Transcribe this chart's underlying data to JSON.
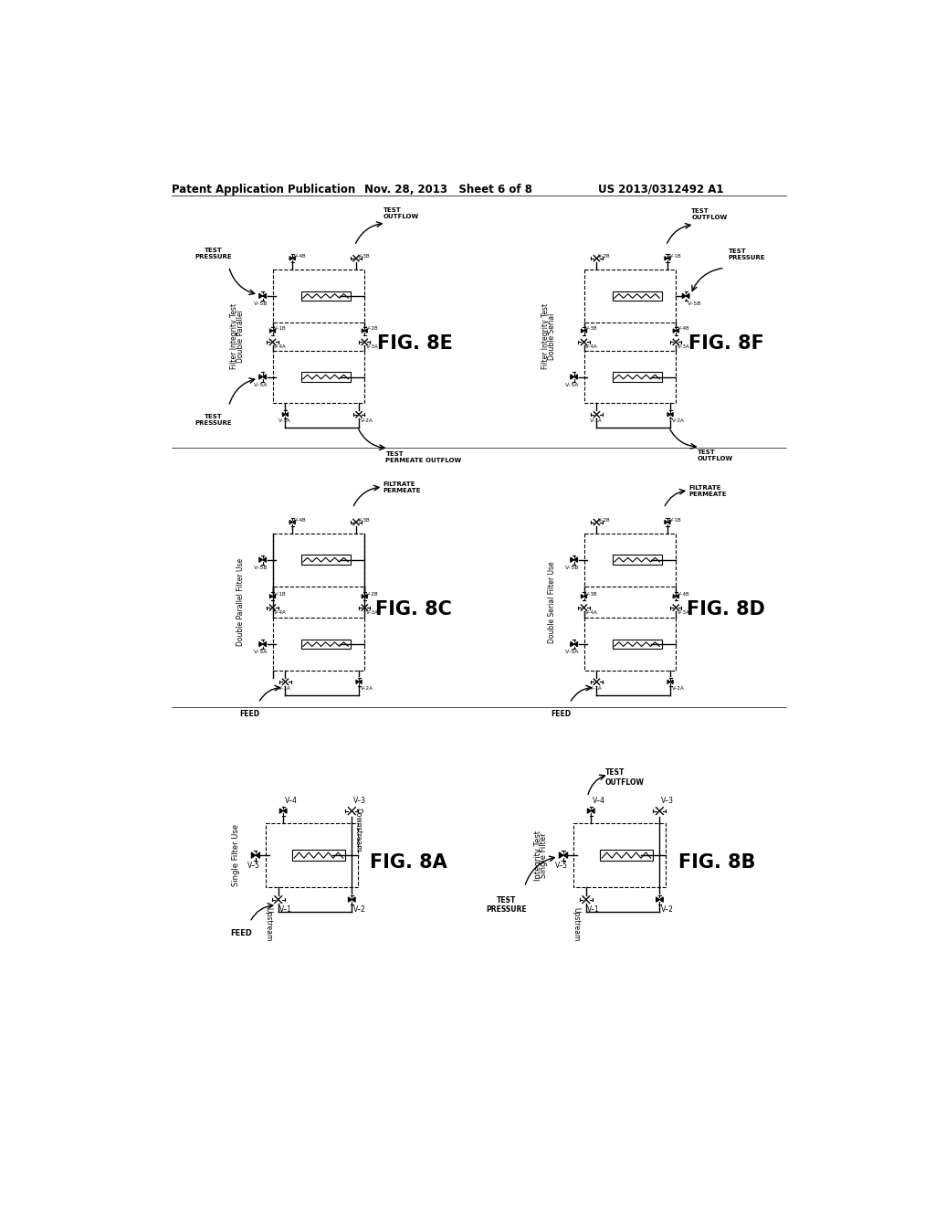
{
  "bg": "#ffffff",
  "header_left": "Patent Application Publication",
  "header_mid": "Nov. 28, 2013   Sheet 6 of 8",
  "header_right": "US 2013/0312492 A1"
}
